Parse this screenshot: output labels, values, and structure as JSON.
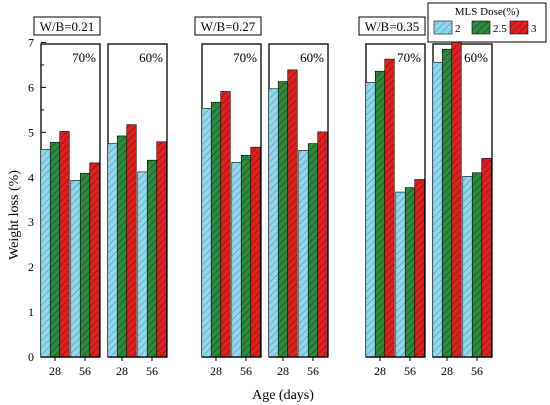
{
  "chart_data": {
    "type": "bar",
    "ylabel": "Weight loss (%)",
    "xlabel": "Age (days)",
    "ylim": [
      0,
      7.5
    ],
    "yticks": [
      "0",
      "1",
      "2",
      "3",
      "4",
      "5",
      "6",
      "7"
    ],
    "legend": {
      "title": "MLS Dose(%)",
      "placement": "top-right",
      "entries": [
        "2",
        "2.5",
        "3"
      ]
    },
    "series_colors": [
      "#8fd8f0",
      "#2e8b3e",
      "#e02020"
    ],
    "groups": [
      {
        "label": "W/B=0.21",
        "panels": [
          {
            "label": "70%",
            "categories": [
              "28",
              "56"
            ],
            "series": [
              {
                "values": [
                  4.62,
                  3.93
                ]
              },
              {
                "values": [
                  4.78,
                  4.09
                ]
              },
              {
                "values": [
                  5.02,
                  4.32
                ]
              }
            ]
          },
          {
            "label": "60%",
            "categories": [
              "28",
              "56"
            ],
            "series": [
              {
                "values": [
                  4.75,
                  4.12
                ]
              },
              {
                "values": [
                  4.92,
                  4.38
                ]
              },
              {
                "values": [
                  5.17,
                  4.79
                ]
              }
            ]
          }
        ]
      },
      {
        "label": "W/B=0.27",
        "panels": [
          {
            "label": "70%",
            "categories": [
              "28",
              "56"
            ],
            "series": [
              {
                "values": [
                  5.53,
                  4.33
                ]
              },
              {
                "values": [
                  5.67,
                  4.49
                ]
              },
              {
                "values": [
                  5.91,
                  4.67
                ]
              }
            ]
          },
          {
            "label": "60%",
            "categories": [
              "28",
              "56"
            ],
            "series": [
              {
                "values": [
                  5.97,
                  4.6
                ]
              },
              {
                "values": [
                  6.13,
                  4.75
                ]
              },
              {
                "values": [
                  6.39,
                  5.01
                ]
              }
            ]
          }
        ]
      },
      {
        "label": "W/B=0.35",
        "panels": [
          {
            "label": "70%",
            "categories": [
              "28",
              "56"
            ],
            "series": [
              {
                "values": [
                  6.11,
                  3.67
                ]
              },
              {
                "values": [
                  6.36,
                  3.77
                ]
              },
              {
                "values": [
                  6.63,
                  3.95
                ]
              }
            ]
          },
          {
            "label": "60%",
            "categories": [
              "28",
              "56"
            ],
            "series": [
              {
                "values": [
                  6.56,
                  4.02
                ]
              },
              {
                "values": [
                  6.85,
                  4.1
                ]
              },
              {
                "values": [
                  7.1,
                  4.42
                ]
              }
            ]
          }
        ]
      }
    ]
  }
}
